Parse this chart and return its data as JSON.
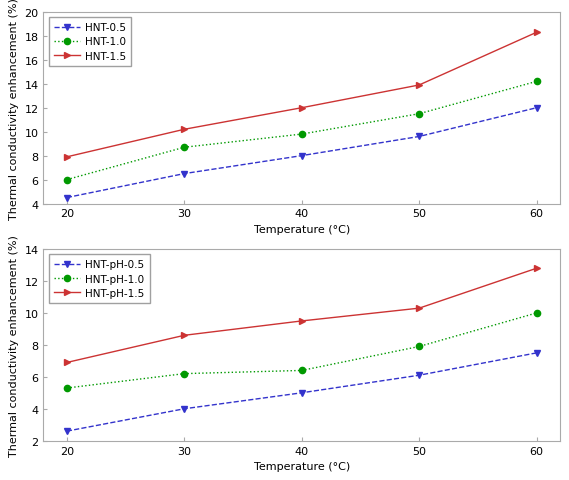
{
  "temperatures": [
    20,
    30,
    40,
    50,
    60
  ],
  "upper_series": [
    {
      "label": "HNT-0.5",
      "values": [
        4.5,
        6.5,
        8.0,
        9.6,
        12.0
      ],
      "color": "#3333cc",
      "linestyle": "--",
      "marker": "v"
    },
    {
      "label": "HNT-1.0",
      "values": [
        6.0,
        8.7,
        9.8,
        11.5,
        14.2
      ],
      "color": "#009900",
      "linestyle": ":",
      "marker": "o"
    },
    {
      "label": "HNT-1.5",
      "values": [
        7.9,
        10.2,
        12.0,
        13.9,
        18.3
      ],
      "color": "#cc3333",
      "linestyle": "-",
      "marker": ">"
    }
  ],
  "upper_ylim": [
    4,
    20
  ],
  "upper_yticks": [
    4,
    6,
    8,
    10,
    12,
    14,
    16,
    18,
    20
  ],
  "lower_series": [
    {
      "label": "HNT-pH-0.5",
      "values": [
        2.6,
        4.0,
        5.0,
        6.1,
        7.5
      ],
      "color": "#3333cc",
      "linestyle": "--",
      "marker": "v"
    },
    {
      "label": "HNT-pH-1.0",
      "values": [
        5.3,
        6.2,
        6.4,
        7.9,
        10.0
      ],
      "color": "#009900",
      "linestyle": ":",
      "marker": "o"
    },
    {
      "label": "HNT-pH-1.5",
      "values": [
        6.9,
        8.6,
        9.5,
        10.3,
        12.8
      ],
      "color": "#cc3333",
      "linestyle": "-",
      "marker": ">"
    }
  ],
  "lower_ylim": [
    2,
    14
  ],
  "lower_yticks": [
    2,
    4,
    6,
    8,
    10,
    12,
    14
  ],
  "xlabel": "Temperature (°C)",
  "ylabel": "Thermal conductivity enhancement (%)",
  "xticks": [
    20,
    30,
    40,
    50,
    60
  ],
  "background_color": "#ffffff",
  "legend_fontsize": 7.5,
  "axis_fontsize": 8,
  "tick_fontsize": 8,
  "linewidth": 1.0,
  "markersize": 4.5
}
